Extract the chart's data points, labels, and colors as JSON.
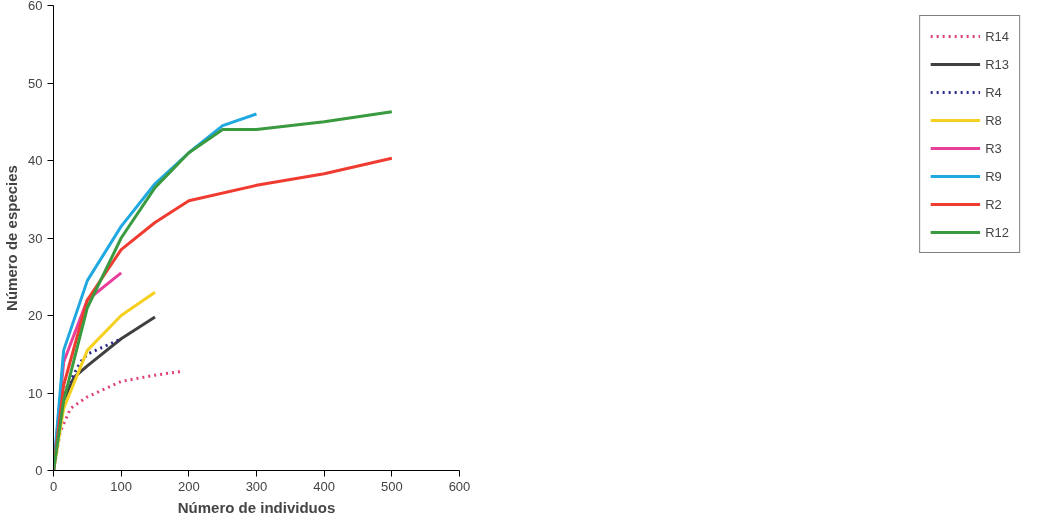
{
  "chart_data": {
    "type": "line",
    "xlabel": "Número de individuos",
    "ylabel": "Número de especies",
    "xlim": [
      0,
      600
    ],
    "ylim": [
      0,
      60
    ],
    "xticks": [
      0,
      100,
      200,
      300,
      400,
      500,
      600
    ],
    "yticks": [
      0,
      10,
      20,
      30,
      40,
      50,
      60
    ],
    "grid": false,
    "legend": "right",
    "marker": "none",
    "series": [
      {
        "name": "R14",
        "color": "#e0407a",
        "line_style": "dotted",
        "x": [
          0,
          10,
          25,
          50,
          100,
          150,
          190
        ],
        "values": [
          0,
          5,
          8,
          9.5,
          11.5,
          12.3,
          12.8
        ]
      },
      {
        "name": "R13",
        "color": "#404040",
        "line_style": "solid",
        "x": [
          0,
          15,
          30,
          50,
          100,
          150
        ],
        "values": [
          0,
          9,
          12,
          13.5,
          17,
          19.8
        ]
      },
      {
        "name": "R4",
        "color": "#2a2a8a",
        "line_style": "dotted",
        "x": [
          0,
          15,
          40,
          50,
          75,
          100
        ],
        "values": [
          0,
          10,
          14,
          15,
          16,
          17
        ]
      },
      {
        "name": "R8",
        "color": "#f5d020",
        "line_style": "solid",
        "x": [
          0,
          15,
          50,
          100,
          150
        ],
        "values": [
          0,
          8,
          15.5,
          20,
          23
        ]
      },
      {
        "name": "R3",
        "color": "#e8409a",
        "line_style": "solid",
        "x": [
          0,
          15,
          50,
          100
        ],
        "values": [
          0,
          14,
          22,
          25.5
        ]
      },
      {
        "name": "R9",
        "color": "#20a8e0",
        "line_style": "solid",
        "x": [
          0,
          15,
          50,
          100,
          150,
          200,
          250,
          300
        ],
        "values": [
          0,
          15.5,
          24.5,
          31.5,
          37,
          41,
          44.5,
          46
        ]
      },
      {
        "name": "R2",
        "color": "#f03c30",
        "line_style": "solid",
        "x": [
          0,
          15,
          50,
          100,
          150,
          200,
          300,
          400,
          500
        ],
        "values": [
          0,
          11,
          22,
          28.5,
          32,
          34.8,
          36.8,
          38.3,
          40.3
        ]
      },
      {
        "name": "R12",
        "color": "#3a9a40",
        "line_style": "solid",
        "x": [
          0,
          15,
          50,
          100,
          150,
          200,
          250,
          300,
          400,
          500
        ],
        "values": [
          0,
          9,
          21,
          30,
          36.5,
          41,
          44,
          44,
          45,
          46.3
        ]
      }
    ]
  }
}
